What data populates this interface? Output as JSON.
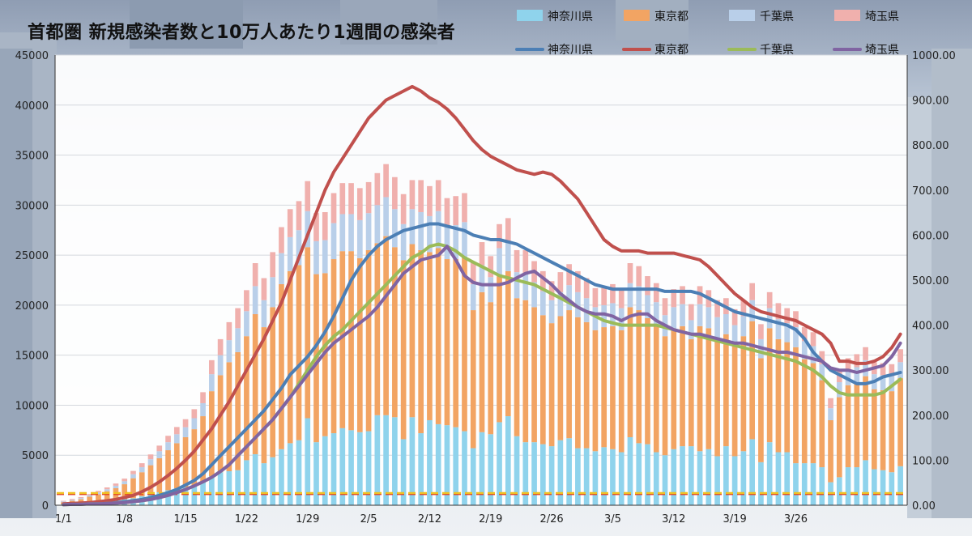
{
  "chart_data": {
    "type": "bar+line",
    "title": "首都圏 新規感染者数と10万人あたり1週間の感染者",
    "x_ticks": [
      "1/1",
      "1/8",
      "1/15",
      "1/22",
      "1/29",
      "2/5",
      "2/12",
      "2/19",
      "2/26",
      "3/5",
      "3/12",
      "3/19",
      "3/26"
    ],
    "y_left": {
      "ticks": [
        "0",
        "5000",
        "10000",
        "15000",
        "20000",
        "25000",
        "30000",
        "35000",
        "40000",
        "45000"
      ],
      "lim": [
        0,
        45000
      ]
    },
    "y_right": {
      "ticks": [
        "0.00",
        "100.00",
        "200.00",
        "300.00",
        "400.00",
        "500.00",
        "600.00",
        "700.00",
        "800.00",
        "900.00",
        "1000.00"
      ],
      "lim": [
        0,
        1000
      ]
    },
    "bar_series": [
      {
        "name": "神奈川県",
        "color": "#8fd3ec",
        "values": [
          100,
          150,
          200,
          250,
          300,
          400,
          500,
          600,
          700,
          900,
          1100,
          1300,
          1500,
          1700,
          1800,
          2000,
          2300,
          2900,
          3300,
          3400,
          3500,
          4500,
          5100,
          4200,
          4800,
          5600,
          6200,
          6500,
          8700,
          6300,
          6900,
          7200,
          7700,
          7500,
          7300,
          7400,
          9000,
          9000,
          8800,
          6600,
          8800,
          7200,
          8500,
          8100,
          8000,
          7800,
          7400,
          5700,
          7300,
          7100,
          8300,
          8900,
          6900,
          6300,
          6300,
          6100,
          5900,
          6500,
          6700,
          5700,
          5700,
          5400,
          5800,
          5600,
          5300,
          6800,
          6200,
          6100,
          5300,
          5000,
          5600,
          5900,
          5900,
          5400,
          5600,
          4900,
          5900,
          4900,
          5400,
          6600,
          4300,
          6300,
          5300,
          5300,
          4200,
          4200,
          4200,
          3800,
          2300,
          2800,
          3800,
          3800,
          4500,
          3600,
          3500,
          3300,
          3900
        ]
      },
      {
        "name": "東京都",
        "color": "#f2a463",
        "values": [
          200,
          300,
          400,
          600,
          800,
          1000,
          1200,
          1500,
          2000,
          2400,
          2900,
          3400,
          4000,
          4500,
          5000,
          5600,
          6600,
          8500,
          9700,
          10900,
          11800,
          12400,
          14000,
          13600,
          15000,
          16500,
          17200,
          17500,
          17100,
          16800,
          16300,
          17400,
          17700,
          17900,
          17400,
          18100,
          17200,
          17900,
          17000,
          17900,
          17300,
          18300,
          16800,
          17600,
          16600,
          16800,
          17400,
          13800,
          14000,
          13200,
          14600,
          14500,
          13800,
          14200,
          13500,
          12900,
          12300,
          12400,
          12800,
          13100,
          12600,
          12100,
          12000,
          12300,
          12200,
          13000,
          13300,
          12600,
          12700,
          11900,
          12000,
          12000,
          10700,
          12500,
          12100,
          11800,
          11200,
          11100,
          11500,
          11800,
          10400,
          11400,
          11300,
          11000,
          11600,
          10400,
          10000,
          8700,
          6200,
          8000,
          8200,
          8400,
          8400,
          8000,
          8000,
          8100,
          8800
        ]
      },
      {
        "name": "千葉県",
        "color": "#b9cfe9",
        "values": [
          80,
          100,
          120,
          150,
          180,
          200,
          250,
          300,
          400,
          500,
          600,
          700,
          800,
          900,
          1000,
          1100,
          1300,
          1700,
          2000,
          2200,
          2400,
          2500,
          2800,
          2700,
          3000,
          3100,
          3400,
          3500,
          3600,
          3300,
          3300,
          3600,
          3700,
          3700,
          3800,
          3700,
          3800,
          3900,
          3800,
          3600,
          3500,
          3800,
          3600,
          3700,
          3300,
          3400,
          3500,
          2600,
          2700,
          2500,
          2800,
          2900,
          2600,
          2700,
          2500,
          2400,
          2300,
          2400,
          2500,
          2500,
          2400,
          2300,
          2200,
          2300,
          2200,
          2400,
          2400,
          2300,
          2300,
          2100,
          2200,
          2200,
          1900,
          2200,
          2100,
          2100,
          2000,
          2000,
          2000,
          2100,
          1900,
          2000,
          2000,
          1900,
          2000,
          1800,
          1700,
          1600,
          1200,
          1500,
          1500,
          1600,
          1600,
          1500,
          1500,
          1500,
          1600
        ]
      },
      {
        "name": "埼玉県",
        "color": "#f0b0ad",
        "values": [
          60,
          80,
          100,
          120,
          150,
          180,
          220,
          260,
          330,
          400,
          480,
          560,
          640,
          720,
          800,
          900,
          1100,
          1400,
          1600,
          1800,
          2000,
          2100,
          2300,
          2200,
          2500,
          2600,
          2800,
          2900,
          3000,
          2800,
          2800,
          3000,
          3100,
          3100,
          3200,
          3100,
          3200,
          3300,
          3200,
          3000,
          2900,
          3200,
          3000,
          3100,
          2800,
          2900,
          2900,
          2200,
          2300,
          2100,
          2400,
          2400,
          2200,
          2300,
          2100,
          2000,
          1900,
          2000,
          2100,
          2100,
          2000,
          1900,
          1800,
          1900,
          1800,
          2000,
          2000,
          1900,
          1900,
          1700,
          1800,
          1800,
          1600,
          1800,
          1700,
          1700,
          1600,
          1600,
          1600,
          1700,
          1500,
          1600,
          1600,
          1500,
          1600,
          1400,
          1400,
          1300,
          1000,
          1200,
          1200,
          1300,
          1300,
          1200,
          1200,
          1200,
          1300
        ]
      }
    ],
    "line_series": [
      {
        "name": "神奈川県",
        "color": "#4c7fb5",
        "values": [
          2,
          2,
          3,
          3,
          4,
          5,
          6,
          8,
          10,
          13,
          17,
          22,
          28,
          35,
          45,
          55,
          70,
          90,
          110,
          130,
          150,
          170,
          190,
          210,
          235,
          260,
          290,
          310,
          330,
          355,
          385,
          420,
          460,
          500,
          530,
          555,
          575,
          590,
          600,
          610,
          615,
          620,
          625,
          625,
          620,
          615,
          610,
          600,
          595,
          590,
          590,
          585,
          580,
          570,
          560,
          550,
          540,
          530,
          520,
          510,
          500,
          490,
          485,
          480,
          480,
          480,
          480,
          480,
          480,
          475,
          475,
          475,
          475,
          470,
          460,
          450,
          440,
          430,
          425,
          420,
          415,
          410,
          405,
          400,
          390,
          370,
          340,
          320,
          300,
          290,
          280,
          270,
          270,
          275,
          285,
          290,
          295
        ]
      },
      {
        "name": "東京都",
        "color": "#c0504d",
        "values": [
          3,
          4,
          5,
          6,
          8,
          10,
          13,
          17,
          22,
          30,
          40,
          52,
          66,
          82,
          100,
          120,
          145,
          170,
          200,
          230,
          265,
          300,
          335,
          370,
          410,
          450,
          500,
          550,
          600,
          650,
          700,
          740,
          770,
          800,
          830,
          860,
          880,
          900,
          910,
          920,
          930,
          920,
          905,
          895,
          880,
          860,
          835,
          810,
          790,
          775,
          765,
          755,
          745,
          740,
          735,
          740,
          735,
          720,
          700,
          680,
          650,
          620,
          590,
          575,
          565,
          565,
          565,
          560,
          560,
          560,
          560,
          555,
          550,
          545,
          530,
          510,
          490,
          470,
          455,
          440,
          430,
          425,
          420,
          415,
          410,
          400,
          390,
          380,
          360,
          320,
          320,
          315,
          315,
          320,
          330,
          350,
          380
        ]
      },
      {
        "name": "千葉県",
        "color": "#9bbb59",
        "values": [
          1,
          2,
          2,
          3,
          3,
          4,
          5,
          6,
          8,
          10,
          13,
          17,
          22,
          28,
          35,
          43,
          52,
          62,
          75,
          90,
          110,
          130,
          150,
          170,
          190,
          215,
          240,
          270,
          300,
          330,
          355,
          375,
          390,
          410,
          430,
          450,
          470,
          490,
          510,
          530,
          550,
          560,
          575,
          580,
          575,
          565,
          550,
          540,
          530,
          520,
          510,
          505,
          500,
          495,
          490,
          480,
          470,
          460,
          450,
          440,
          430,
          420,
          410,
          405,
          400,
          400,
          400,
          400,
          400,
          395,
          390,
          385,
          380,
          375,
          370,
          365,
          360,
          355,
          350,
          345,
          340,
          335,
          330,
          325,
          320,
          310,
          300,
          285,
          265,
          250,
          245,
          245,
          245,
          245,
          250,
          265,
          280
        ]
      },
      {
        "name": "埼玉県",
        "color": "#8064a2",
        "values": [
          1,
          2,
          2,
          3,
          3,
          4,
          5,
          6,
          8,
          10,
          13,
          17,
          22,
          28,
          35,
          43,
          52,
          62,
          75,
          90,
          110,
          130,
          150,
          170,
          190,
          215,
          240,
          265,
          290,
          315,
          340,
          360,
          375,
          390,
          405,
          420,
          440,
          465,
          490,
          515,
          530,
          545,
          550,
          555,
          575,
          545,
          510,
          495,
          490,
          490,
          490,
          495,
          505,
          515,
          520,
          505,
          490,
          470,
          455,
          440,
          430,
          425,
          425,
          420,
          410,
          420,
          425,
          425,
          410,
          400,
          390,
          385,
          380,
          380,
          375,
          370,
          365,
          360,
          360,
          355,
          350,
          345,
          340,
          340,
          335,
          330,
          325,
          320,
          305,
          300,
          300,
          295,
          300,
          305,
          310,
          330,
          360
        ]
      }
    ],
    "ref_lines": [
      {
        "axis": "right",
        "value": 25,
        "color": "#e03020",
        "style": "dashed"
      },
      {
        "axis": "right",
        "value": 27,
        "color": "#f0c020",
        "style": "dashed"
      }
    ],
    "legend": {
      "bars": [
        "神奈川県",
        "東京都",
        "千葉県",
        "埼玉県"
      ],
      "lines": [
        "神奈川県",
        "東京都",
        "千葉県",
        "埼玉県"
      ],
      "placement": "top"
    }
  }
}
